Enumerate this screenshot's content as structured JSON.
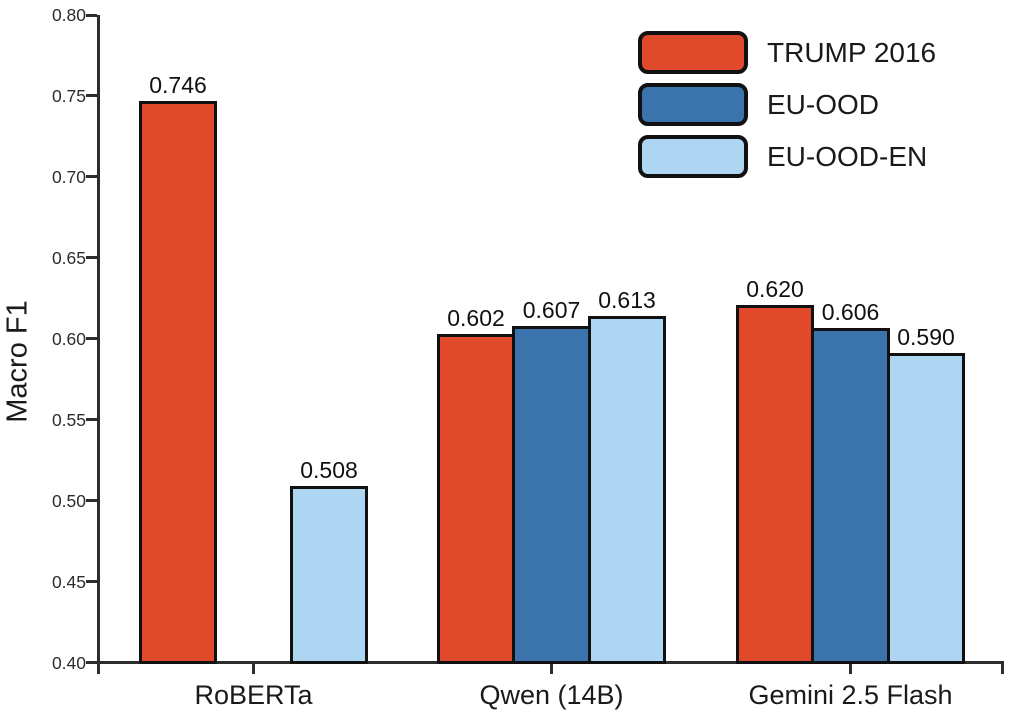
{
  "chart_data": {
    "type": "bar",
    "title": "",
    "xlabel": "",
    "ylabel": "Macro F1",
    "ylim": [
      0.4,
      0.8
    ],
    "yticks": [
      "0.40",
      "0.45",
      "0.50",
      "0.55",
      "0.60",
      "0.65",
      "0.70",
      "0.75",
      "0.80"
    ],
    "grid": false,
    "legend_position": "top-right",
    "categories": [
      "RoBERTa",
      "Qwen (14B)",
      "Gemini 2.5 Flash"
    ],
    "series": [
      {
        "name": "TRUMP 2016",
        "color": "#E04A2B",
        "values": [
          0.746,
          0.602,
          0.62
        ]
      },
      {
        "name": "EU-OOD",
        "color": "#3B73AD",
        "values": [
          null,
          0.607,
          0.606
        ]
      },
      {
        "name": "EU-OOD-EN",
        "color": "#AED5F2",
        "values": [
          0.508,
          0.613,
          0.59
        ]
      }
    ],
    "bar_value_labels": {
      "TRUMP 2016": [
        "0.746",
        "0.602",
        "0.620"
      ],
      "EU-OOD": [
        "",
        "0.607",
        "0.606"
      ],
      "EU-OOD-EN": [
        "0.508",
        "0.613",
        "0.590"
      ]
    },
    "colors": {
      "axis": "#2d2d2d",
      "bar_outline": "#111111",
      "text": "#1a1a1a"
    }
  }
}
